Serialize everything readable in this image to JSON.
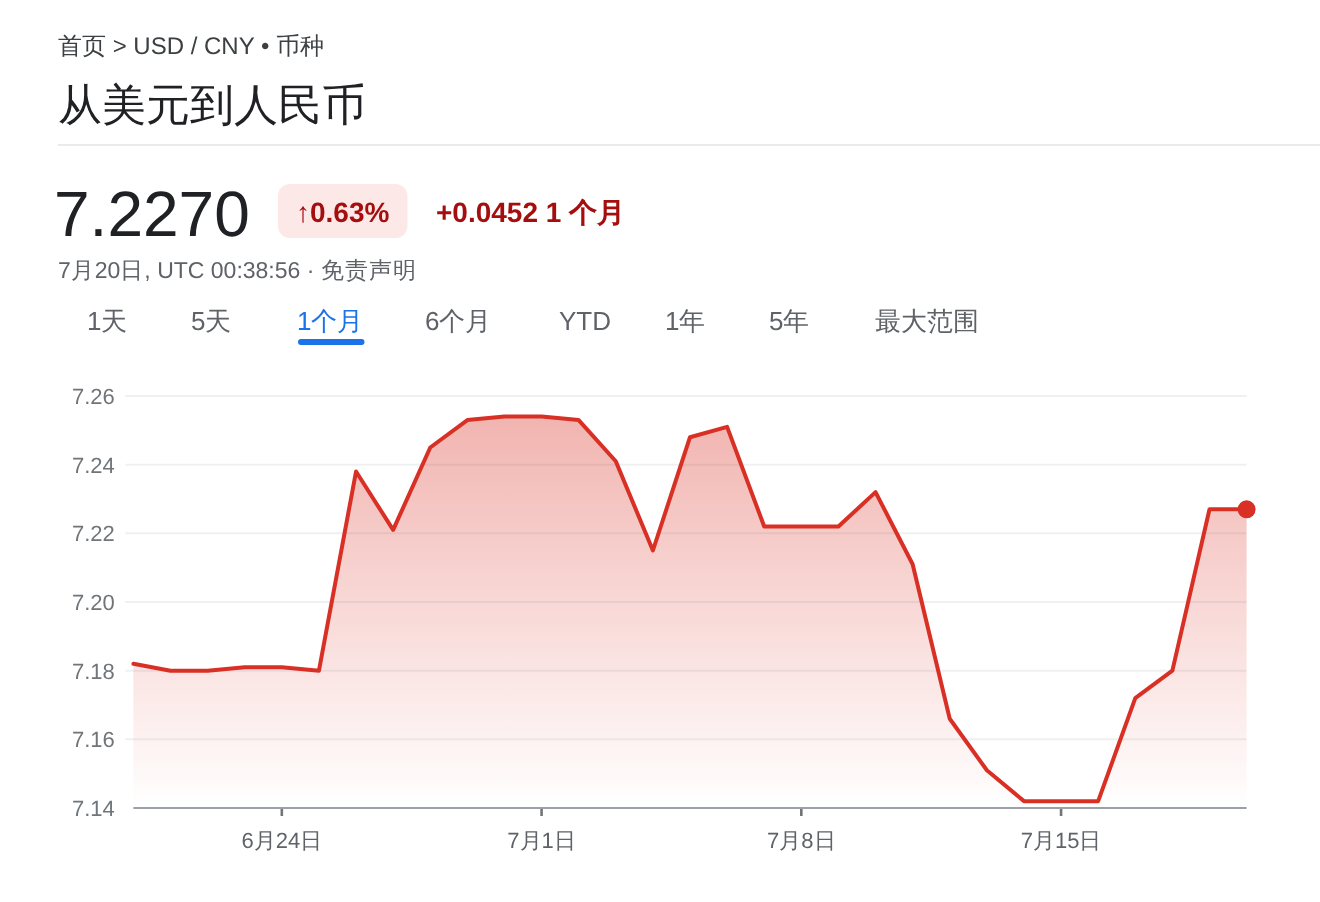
{
  "chart_data": {
    "type": "area",
    "title": "从美元到人民币",
    "annotations": [
      "首页 > USD / CNY • 币种",
      "7.2270",
      "↑0.63%",
      "+0.0452 1 个月",
      "7月20日, UTC 00:38:56 · 免责声明",
      "1天",
      "5天",
      "1个月",
      "6个月",
      "YTD",
      "1年",
      "5年",
      "最大范围"
    ],
    "x": [
      "--06-20",
      "--06-21",
      "--06-22",
      "--06-23",
      "--06-24",
      "--06-25",
      "--06-26",
      "--06-27",
      "--06-28",
      "--06-29",
      "--06-30",
      "--07-01",
      "--07-02",
      "--07-03",
      "--07-04",
      "--07-05",
      "--07-06",
      "--07-07",
      "--07-08",
      "--07-09",
      "--07-10",
      "--07-11",
      "--07-12",
      "--07-13",
      "--07-14",
      "--07-15",
      "--07-16",
      "--07-17",
      "--07-18",
      "--07-19",
      "--07-20"
    ],
    "series": [
      {
        "color": "#d93025",
        "values": [
          7.182,
          7.18,
          7.18,
          7.181,
          7.181,
          7.18,
          7.238,
          7.221,
          7.245,
          7.253,
          7.254,
          7.254,
          7.253,
          7.241,
          7.215,
          7.248,
          7.251,
          7.222,
          7.222,
          7.222,
          7.232,
          7.211,
          7.166,
          7.151,
          7.142,
          7.142,
          7.142,
          7.172,
          7.18,
          7.227,
          7.227
        ]
      },
      {
        "type": "scatter",
        "color": "#d93025",
        "marker": "circle",
        "x": [
          "--07-20"
        ],
        "values": [
          7.227
        ]
      }
    ],
    "xlim": [
      "--06-20",
      "--07-20"
    ],
    "xticks": [
      {
        "value": "--06-24",
        "label": "6月24日"
      },
      {
        "value": "--07-01",
        "label": "7月1日"
      },
      {
        "value": "--07-08",
        "label": "7月8日"
      },
      {
        "value": "--07-15",
        "label": "7月15日"
      }
    ],
    "ylim": [
      7.14,
      7.26
    ],
    "yticks": [
      7.14,
      7.16,
      7.18,
      {
        "value": 7.2,
        "label": "7.20"
      },
      7.22,
      7.24,
      7.26
    ],
    "grid": "y"
  }
}
